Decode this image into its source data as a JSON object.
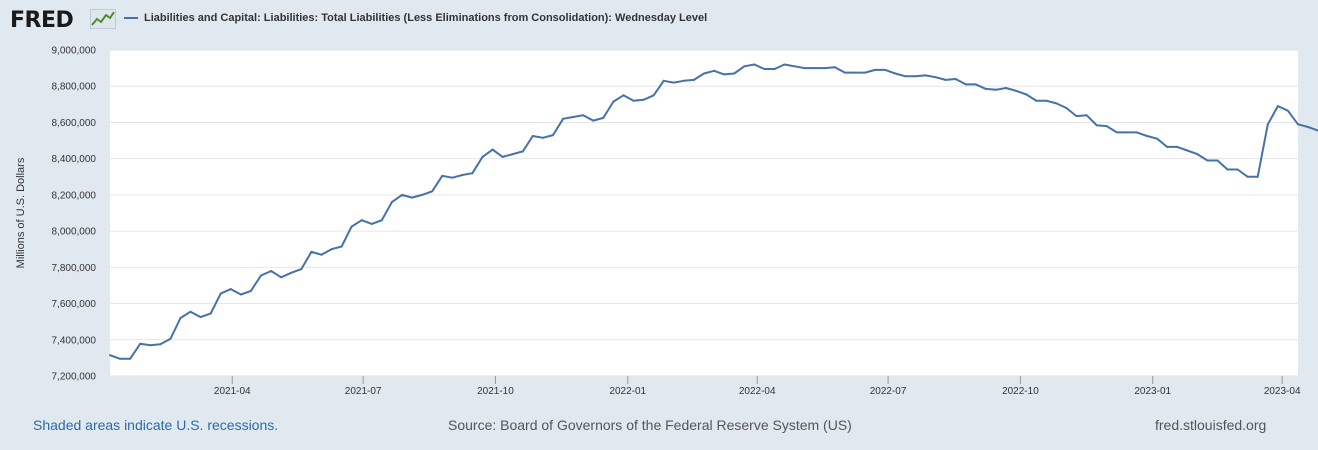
{
  "brand": {
    "logo_text": "FRED",
    "logo_icon": "fred-graph-icon"
  },
  "footer": {
    "recessions_note": "Shaded areas indicate U.S. recessions.",
    "source": "Source: Board of Governors of the Federal Reserve System (US)",
    "site": "fred.stlouisfed.org"
  },
  "colors": {
    "line": "#4572a7",
    "plot_bg": "#ffffff",
    "page_bg": "#e1e9f0",
    "grid": "#e6e6e6"
  },
  "chart_data": {
    "type": "line",
    "title": "Liabilities and Capital: Liabilities: Total Liabilities (Less Eliminations from Consolidation): Wednesday Level",
    "legend": [
      "Liabilities and Capital: Liabilities: Total Liabilities (Less Eliminations from Consolidation): Wednesday Level"
    ],
    "xlabel": "",
    "ylabel": "Millions of U.S. Dollars",
    "ylim": [
      7200000,
      9000000
    ],
    "yticks": [
      7200000,
      7400000,
      7600000,
      7800000,
      8000000,
      8200000,
      8400000,
      8600000,
      8800000,
      9000000
    ],
    "ytick_labels": [
      "7,200,000",
      "7,400,000",
      "7,600,000",
      "7,800,000",
      "8,000,000",
      "8,200,000",
      "8,400,000",
      "8,600,000",
      "8,800,000",
      "9,000,000"
    ],
    "x_range": [
      "2021-01-06",
      "2023-04-12"
    ],
    "xticks": [
      {
        "date": "2021-04-01",
        "label": "2021-04"
      },
      {
        "date": "2021-07-01",
        "label": "2021-07"
      },
      {
        "date": "2021-10-01",
        "label": "2021-10"
      },
      {
        "date": "2022-01-01",
        "label": "2022-01"
      },
      {
        "date": "2022-04-01",
        "label": "2022-04"
      },
      {
        "date": "2022-07-01",
        "label": "2022-07"
      },
      {
        "date": "2022-10-01",
        "label": "2022-10"
      },
      {
        "date": "2023-01-01",
        "label": "2023-01"
      },
      {
        "date": "2023-04-01",
        "label": "2023-04"
      }
    ],
    "series": [
      {
        "name": "Total Liabilities (Wednesday Level)",
        "start": "2021-01-06",
        "interval_days": 7,
        "values": [
          7315000,
          7295000,
          7295000,
          7378000,
          7370000,
          7375000,
          7405000,
          7520000,
          7555000,
          7525000,
          7545000,
          7655000,
          7680000,
          7650000,
          7670000,
          7755000,
          7780000,
          7745000,
          7770000,
          7790000,
          7885000,
          7870000,
          7900000,
          7915000,
          8025000,
          8060000,
          8040000,
          8060000,
          8160000,
          8200000,
          8185000,
          8200000,
          8220000,
          8305000,
          8295000,
          8310000,
          8320000,
          8410000,
          8450000,
          8410000,
          8425000,
          8440000,
          8525000,
          8515000,
          8530000,
          8620000,
          8630000,
          8640000,
          8610000,
          8625000,
          8715000,
          8750000,
          8720000,
          8725000,
          8750000,
          8830000,
          8820000,
          8830000,
          8835000,
          8870000,
          8885000,
          8865000,
          8870000,
          8910000,
          8920000,
          8895000,
          8895000,
          8920000,
          8910000,
          8900000,
          8900000,
          8900000,
          8905000,
          8875000,
          8875000,
          8875000,
          8890000,
          8890000,
          8870000,
          8855000,
          8855000,
          8860000,
          8850000,
          8835000,
          8840000,
          8810000,
          8810000,
          8785000,
          8780000,
          8790000,
          8775000,
          8755000,
          8720000,
          8720000,
          8705000,
          8680000,
          8635000,
          8640000,
          8585000,
          8580000,
          8545000,
          8545000,
          8545000,
          8525000,
          8510000,
          8465000,
          8465000,
          8445000,
          8425000,
          8390000,
          8390000,
          8340000,
          8340000,
          8300000,
          8300000,
          8590000,
          8690000,
          8665000,
          8590000,
          8575000,
          8555000
        ]
      }
    ]
  }
}
